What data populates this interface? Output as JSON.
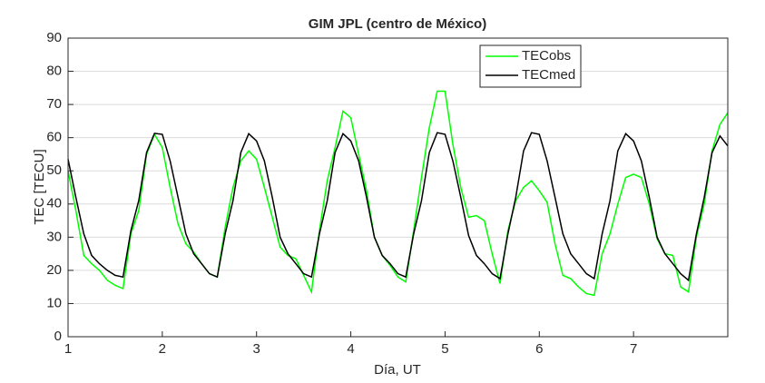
{
  "chart_data": {
    "type": "line",
    "title": "GIM JPL (centro de México)",
    "xlabel": "Día, UT",
    "ylabel": "TEC [TECU]",
    "x": [
      1,
      1.083,
      1.167,
      1.25,
      1.333,
      1.417,
      1.5,
      1.583,
      1.667,
      1.75,
      1.833,
      1.917,
      2,
      2.083,
      2.167,
      2.25,
      2.333,
      2.417,
      2.5,
      2.583,
      2.667,
      2.75,
      2.833,
      2.917,
      3,
      3.083,
      3.167,
      3.25,
      3.333,
      3.417,
      3.5,
      3.583,
      3.667,
      3.75,
      3.833,
      3.917,
      4,
      4.083,
      4.167,
      4.25,
      4.333,
      4.417,
      4.5,
      4.583,
      4.667,
      4.75,
      4.833,
      4.917,
      5,
      5.083,
      5.167,
      5.25,
      5.333,
      5.417,
      5.5,
      5.583,
      5.667,
      5.75,
      5.833,
      5.917,
      6,
      6.083,
      6.167,
      6.25,
      6.333,
      6.417,
      6.5,
      6.583,
      6.667,
      6.75,
      6.833,
      6.917,
      7,
      7.083,
      7.167,
      7.25,
      7.333,
      7.417,
      7.5,
      7.583,
      7.667,
      7.75,
      7.833,
      7.917,
      8
    ],
    "series": [
      {
        "name": "TECobs",
        "color": "#00ff00",
        "values": [
          50,
          38,
          24.5,
          22,
          20,
          17,
          15.5,
          14.5,
          31,
          38,
          55,
          61,
          57,
          45,
          34,
          28,
          25.5,
          22,
          19,
          18,
          33,
          45,
          53,
          56,
          53.5,
          45,
          36,
          27,
          24.5,
          23.5,
          18.5,
          13.5,
          32,
          47,
          57,
          68,
          66,
          55,
          44,
          30,
          24.5,
          21.5,
          18,
          16.5,
          32,
          48,
          63,
          74,
          74,
          58,
          45,
          36,
          36.5,
          35,
          25,
          16,
          32,
          41,
          45,
          47,
          44,
          40.5,
          28,
          18.5,
          17.5,
          15,
          13,
          12.5,
          25,
          31,
          40,
          48,
          49,
          48,
          40,
          29.5,
          25,
          24.5,
          15,
          13.5,
          30,
          40,
          56,
          64,
          67.5
        ]
      },
      {
        "name": "TECmed",
        "color": "#000000",
        "values": [
          53.5,
          42,
          31,
          24.5,
          22,
          20,
          18.5,
          18,
          32,
          41,
          55.5,
          61.3,
          61,
          53,
          42,
          31,
          25,
          22,
          19,
          18,
          31,
          41,
          55.5,
          61.2,
          59,
          53,
          42,
          30,
          25,
          22,
          19,
          18,
          31,
          41,
          55.5,
          61.2,
          59,
          53,
          42,
          30,
          24.5,
          22,
          19,
          18,
          31,
          41,
          55.5,
          61.5,
          61,
          53,
          42,
          30.5,
          24.5,
          22,
          19,
          17.5,
          31,
          42,
          56,
          61.5,
          61,
          53,
          42,
          31,
          25,
          22,
          19,
          17.5,
          31,
          41,
          56,
          61.2,
          59,
          53,
          42,
          30,
          25,
          22,
          19,
          17,
          31,
          42,
          55.5,
          60.5,
          57.5
        ]
      }
    ],
    "xlim": [
      1,
      8
    ],
    "xticks": [
      1,
      2,
      3,
      4,
      5,
      6,
      7
    ],
    "ylim": [
      0,
      90
    ],
    "yticks": [
      0,
      10,
      20,
      30,
      40,
      50,
      60,
      70,
      80,
      90
    ],
    "grid": "y",
    "legend": "top-right"
  }
}
